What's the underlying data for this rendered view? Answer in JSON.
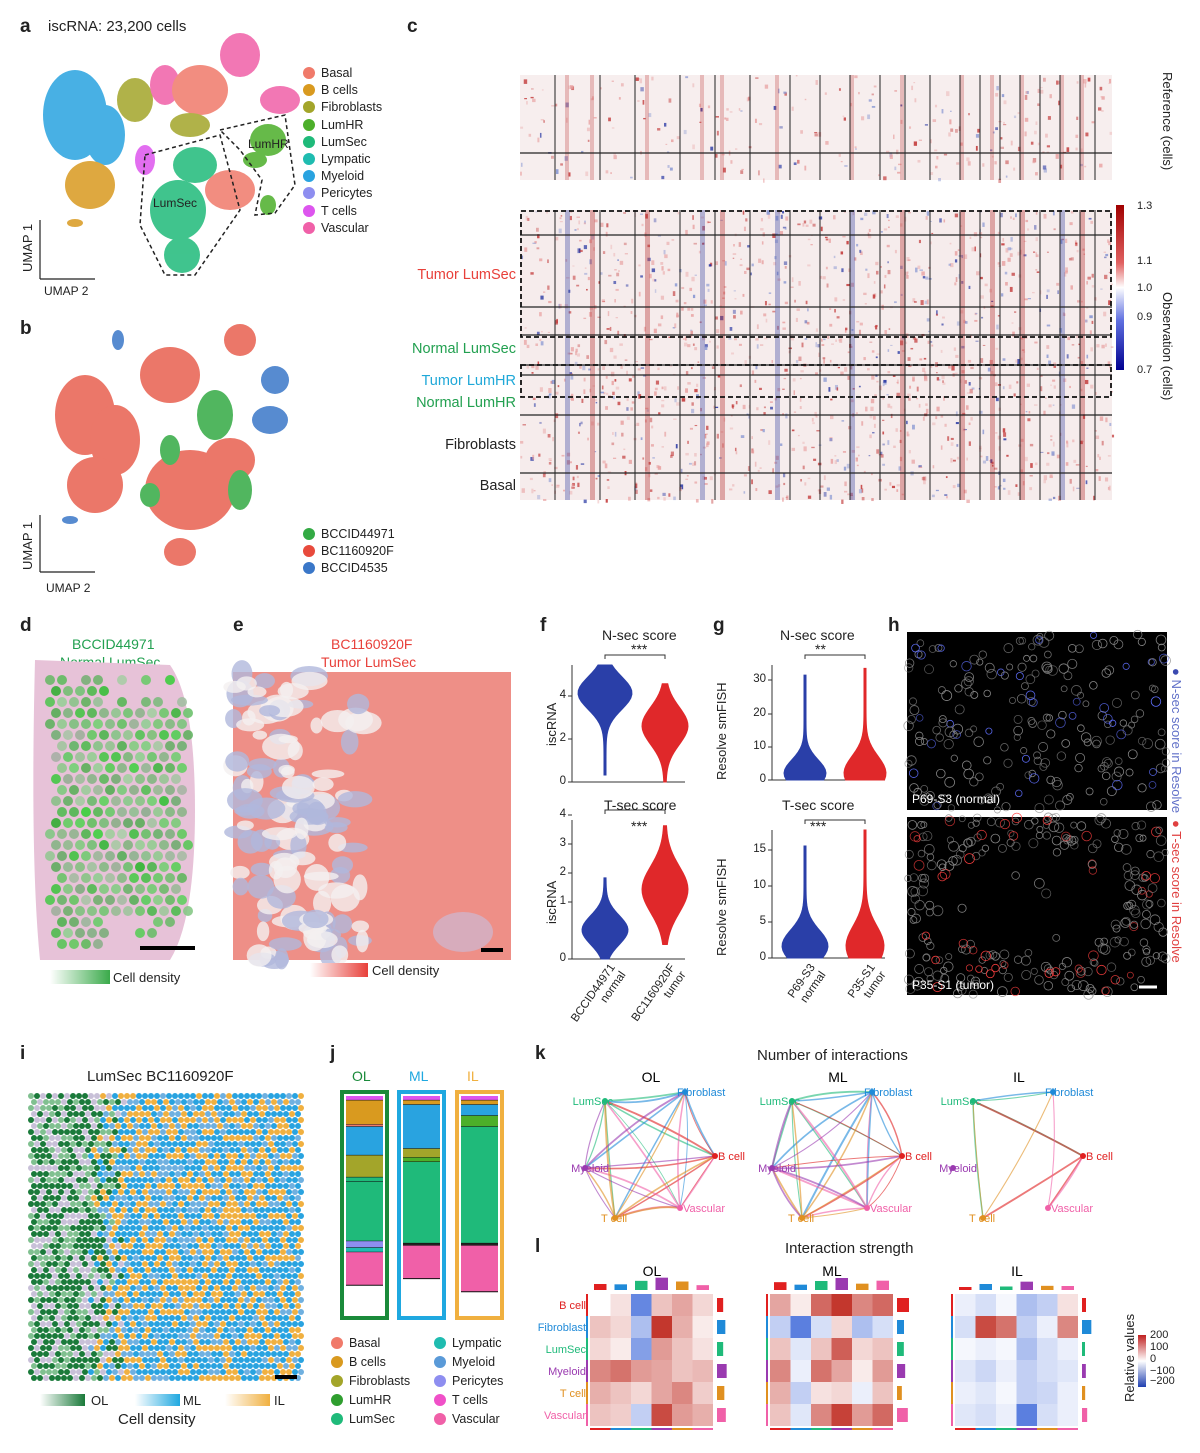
{
  "panels": {
    "a": "a",
    "b": "b",
    "c": "c",
    "d": "d",
    "e": "e",
    "f": "f",
    "g": "g",
    "h": "h",
    "i": "i",
    "j": "j",
    "k": "k",
    "l": "l"
  },
  "a": {
    "title": "iscRNA: 23,200 cells",
    "umap1": "UMAP 1",
    "umap2": "UMAP 2",
    "lumhr": "LumHR",
    "lumsec": "LumSec",
    "legend": [
      {
        "label": "Basal",
        "color": "#f07a6a"
      },
      {
        "label": "B cells",
        "color": "#d99a1f"
      },
      {
        "label": "Fibroblasts",
        "color": "#a3a52a"
      },
      {
        "label": "LumHR",
        "color": "#4caf2a"
      },
      {
        "label": "LumSec",
        "color": "#1fba7a"
      },
      {
        "label": "Lympatic",
        "color": "#1fbcb0"
      },
      {
        "label": "Myeloid",
        "color": "#29a3e0"
      },
      {
        "label": "Pericytes",
        "color": "#8e8ef0"
      },
      {
        "label": "T cells",
        "color": "#dd55ee"
      },
      {
        "label": "Vascular",
        "color": "#f060a8"
      }
    ]
  },
  "b": {
    "umap1": "UMAP 1",
    "umap2": "UMAP 2",
    "legend": [
      {
        "label": "BCCID44971",
        "color": "#33aa44"
      },
      {
        "label": "BC1160920F",
        "color": "#e84a3c"
      },
      {
        "label": "BCCID4535",
        "color": "#3a77c8"
      }
    ]
  },
  "c": {
    "reference": "Reference (cells)",
    "observation": "Observation (cells)",
    "rows": [
      {
        "label": "Tumor LumSec",
        "color": "#e8403a"
      },
      {
        "label": "Normal LumSec",
        "color": "#22a050"
      },
      {
        "label": "Tumor LumHR",
        "color": "#1fa8d8"
      },
      {
        "label": "Normal LumHR",
        "color": "#22a050"
      },
      {
        "label": "Fibroblasts",
        "color": "#222222"
      },
      {
        "label": "Basal",
        "color": "#222222"
      }
    ],
    "colorbar": [
      "1.3",
      "1.1",
      "1.0",
      "0.9",
      "0.7"
    ]
  },
  "d": {
    "title1": "BCCID44971",
    "title2": "Normal LumSec",
    "density": "Cell density"
  },
  "e": {
    "title1": "BC1160920F",
    "title2": "Tumor LumSec",
    "density": "Cell density"
  },
  "f": {
    "top_title": "N-sec score",
    "bottom_title": "T-sec score",
    "ylabel": "iscRNA",
    "sig_top": "***",
    "sig_bottom": "***",
    "yticks_top": [
      "4",
      "2",
      "0"
    ],
    "yticks_bottom": [
      "4",
      "3",
      "2",
      "1",
      "0"
    ],
    "xlabels": [
      [
        "BCCID44971",
        "normal"
      ],
      [
        "BC1160920F",
        "tumor"
      ]
    ]
  },
  "g": {
    "top_title": "N-sec score",
    "bottom_title": "T-sec score",
    "ylabel": "Resolve smFISH",
    "sig_top": "**",
    "sig_bottom": "***",
    "yticks_top": [
      "30",
      "20",
      "10",
      "0"
    ],
    "yticks_bottom": [
      "15",
      "10",
      "5",
      "0"
    ],
    "xlabels": [
      [
        "P69-S3",
        "normal"
      ],
      [
        "P35-S1",
        "tumor"
      ]
    ]
  },
  "h": {
    "top_caption": "P69-S3 (normal)",
    "bottom_caption": "P35-S1 (tumor)",
    "side1": "N-sec score in Resolve",
    "side2": "T-sec score in Resolve"
  },
  "i": {
    "title": "LumSec BC1160920F",
    "ol": "OL",
    "ml": "ML",
    "il": "IL",
    "density": "Cell density"
  },
  "j": {
    "headers": [
      {
        "label": "OL",
        "color": "#1a8a3a"
      },
      {
        "label": "ML",
        "color": "#1fa8e0"
      },
      {
        "label": "IL",
        "color": "#f0b040"
      }
    ],
    "bars": [
      [
        {
          "c": "#dd55ee",
          "v": 0.02
        },
        {
          "c": "#d99a1f",
          "v": 0.11
        },
        {
          "c": "#f07a6a",
          "v": 0.01
        },
        {
          "c": "#29a3e0",
          "v": 0.13
        },
        {
          "c": "#a3a52a",
          "v": 0.1
        },
        {
          "c": "#1fba7a",
          "v": 0.02
        },
        {
          "c": "#1fba7a",
          "v": 0.27
        },
        {
          "c": "#8e8ef0",
          "v": 0.03
        },
        {
          "c": "#1fbcb0",
          "v": 0.02
        },
        {
          "c": "#f060a8",
          "v": 0.15
        }
      ],
      [
        {
          "c": "#dd55ee",
          "v": 0.02
        },
        {
          "c": "#d99a1f",
          "v": 0.02
        },
        {
          "c": "#29a3e0",
          "v": 0.2
        },
        {
          "c": "#a3a52a",
          "v": 0.04
        },
        {
          "c": "#4caf2a",
          "v": 0.02
        },
        {
          "c": "#1fba7a",
          "v": 0.37
        },
        {
          "c": "#222222",
          "v": 0.01
        },
        {
          "c": "#f060a8",
          "v": 0.15
        }
      ],
      [
        {
          "c": "#dd55ee",
          "v": 0.02
        },
        {
          "c": "#d99a1f",
          "v": 0.02
        },
        {
          "c": "#29a3e0",
          "v": 0.05
        },
        {
          "c": "#4caf2a",
          "v": 0.05
        },
        {
          "c": "#1fba7a",
          "v": 0.53
        },
        {
          "c": "#222222",
          "v": 0.01
        },
        {
          "c": "#f060a8",
          "v": 0.21
        }
      ]
    ],
    "legend": [
      {
        "label": "Basal",
        "color": "#f07a6a"
      },
      {
        "label": "Lympatic",
        "color": "#1fbcb0"
      },
      {
        "label": "B cells",
        "color": "#d99a1f"
      },
      {
        "label": "Myeloid",
        "color": "#5a9ad8"
      },
      {
        "label": "Fibroblasts",
        "color": "#a3a52a"
      },
      {
        "label": "Pericytes",
        "color": "#8e8ef0"
      },
      {
        "label": "LumHR",
        "color": "#2f9e2f"
      },
      {
        "label": "T cells",
        "color": "#f050c8"
      },
      {
        "label": "LumSec",
        "color": "#1fba7a"
      },
      {
        "label": "Vascular",
        "color": "#f060a8"
      }
    ]
  },
  "k": {
    "title": "Number of interactions",
    "layers": [
      "OL",
      "ML",
      "IL"
    ],
    "nodes": [
      {
        "label": "LumSec",
        "color": "#1fba7a"
      },
      {
        "label": "Fibroblast",
        "color": "#1f8ad8"
      },
      {
        "label": "B cell",
        "color": "#e02020"
      },
      {
        "label": "Vascular",
        "color": "#f060a8"
      },
      {
        "label": "T cell",
        "color": "#e09020"
      },
      {
        "label": "Myeloid",
        "color": "#9a3ab0"
      }
    ]
  },
  "l": {
    "title": "Interaction strength",
    "layers": [
      "OL",
      "ML",
      "IL"
    ],
    "rows": [
      {
        "label": "B cell",
        "color": "#e02020"
      },
      {
        "label": "Fibroblast",
        "color": "#1f8ad8"
      },
      {
        "label": "LumSec",
        "color": "#1fba7a"
      },
      {
        "label": "Myeloid",
        "color": "#9a3ab0"
      },
      {
        "label": "T cell",
        "color": "#e09020"
      },
      {
        "label": "Vascular",
        "color": "#f060a8"
      }
    ],
    "cbar_label": "Relative values",
    "cbar_ticks": [
      "200",
      "100",
      "0",
      "−100",
      "−200"
    ],
    "matrices": [
      [
        [
          0,
          30,
          -150,
          60,
          90,
          40
        ],
        [
          60,
          40,
          -80,
          220,
          80,
          20
        ],
        [
          40,
          20,
          -120,
          100,
          60,
          30
        ],
        [
          120,
          140,
          100,
          90,
          60,
          70
        ],
        [
          80,
          60,
          40,
          90,
          120,
          50
        ],
        [
          60,
          50,
          -60,
          180,
          100,
          80
        ]
      ],
      [
        [
          90,
          20,
          150,
          200,
          120,
          150
        ],
        [
          -60,
          -160,
          -40,
          40,
          -80,
          -40
        ],
        [
          60,
          -30,
          60,
          160,
          40,
          60
        ],
        [
          120,
          -20,
          140,
          90,
          20,
          100
        ],
        [
          80,
          -60,
          30,
          40,
          -20,
          60
        ],
        [
          60,
          -30,
          120,
          190,
          100,
          150
        ]
      ],
      [
        [
          -20,
          -40,
          -10,
          -80,
          -60,
          30
        ],
        [
          -40,
          180,
          140,
          -60,
          -20,
          120
        ],
        [
          -10,
          -20,
          -10,
          -80,
          -40,
          -20
        ],
        [
          -30,
          -50,
          -20,
          -60,
          -40,
          -30
        ],
        [
          -20,
          -30,
          -10,
          -60,
          -50,
          -20
        ],
        [
          -30,
          -40,
          -20,
          -160,
          -40,
          -20
        ]
      ]
    ]
  }
}
